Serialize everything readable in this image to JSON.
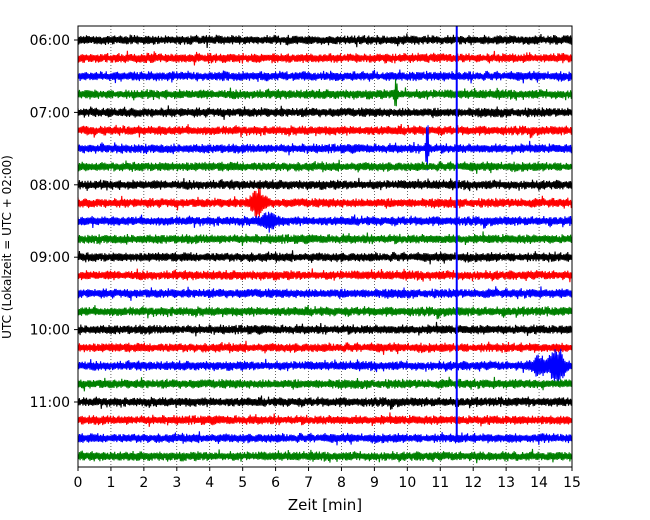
{
  "chart_data": {
    "type": "line",
    "title": "",
    "xlabel": "Zeit  [min]",
    "ylabel": "UTC (Lokalzeit = UTC + 02:00)",
    "xlim": [
      0,
      15
    ],
    "x_ticks": [
      "0",
      "1",
      "2",
      "3",
      "4",
      "5",
      "6",
      "7",
      "8",
      "9",
      "10",
      "11",
      "12",
      "13",
      "14",
      "15"
    ],
    "y_ticks": [
      "06:00",
      "07:00",
      "08:00",
      "09:00",
      "10:00",
      "11:00"
    ],
    "grid": "vertical dotted",
    "trace_interval_minutes": 15,
    "traces": [
      {
        "start": "06:00",
        "color": "#000000"
      },
      {
        "start": "06:15",
        "color": "#ff0000"
      },
      {
        "start": "06:30",
        "color": "#0000ff"
      },
      {
        "start": "06:45",
        "color": "#008000"
      },
      {
        "start": "07:00",
        "color": "#000000"
      },
      {
        "start": "07:15",
        "color": "#ff0000"
      },
      {
        "start": "07:30",
        "color": "#0000ff"
      },
      {
        "start": "07:45",
        "color": "#008000"
      },
      {
        "start": "08:00",
        "color": "#000000"
      },
      {
        "start": "08:15",
        "color": "#ff0000"
      },
      {
        "start": "08:30",
        "color": "#0000ff"
      },
      {
        "start": "08:45",
        "color": "#008000"
      },
      {
        "start": "09:00",
        "color": "#000000"
      },
      {
        "start": "09:15",
        "color": "#ff0000"
      },
      {
        "start": "09:30",
        "color": "#0000ff"
      },
      {
        "start": "09:45",
        "color": "#008000"
      },
      {
        "start": "10:00",
        "color": "#000000"
      },
      {
        "start": "10:15",
        "color": "#ff0000"
      },
      {
        "start": "10:30",
        "color": "#0000ff"
      },
      {
        "start": "10:45",
        "color": "#008000"
      },
      {
        "start": "11:00",
        "color": "#000000"
      },
      {
        "start": "11:15",
        "color": "#ff0000"
      },
      {
        "start": "11:30",
        "color": "#0000ff"
      },
      {
        "start": "11:45",
        "color": "#008000"
      }
    ],
    "events": [
      {
        "trace": "06:45",
        "minute": 9.65,
        "amplitude": 0.9,
        "kind": "spike"
      },
      {
        "trace": "07:30",
        "minute": 10.6,
        "amplitude": 1.9,
        "kind": "spike"
      },
      {
        "trace": "08:15",
        "minute": 5.45,
        "amplitude": 0.6,
        "kind": "burst"
      },
      {
        "trace": "08:30",
        "minute": 5.8,
        "amplitude": 0.35,
        "kind": "burst"
      },
      {
        "trace": "10:30",
        "minute": 14.55,
        "amplitude": 0.85,
        "kind": "burst"
      },
      {
        "trace": "10:30",
        "minute": 14.0,
        "amplitude": 0.45,
        "kind": "burst"
      }
    ],
    "vertical_marker": {
      "minute": 11.5,
      "color": "#0000ff"
    }
  }
}
